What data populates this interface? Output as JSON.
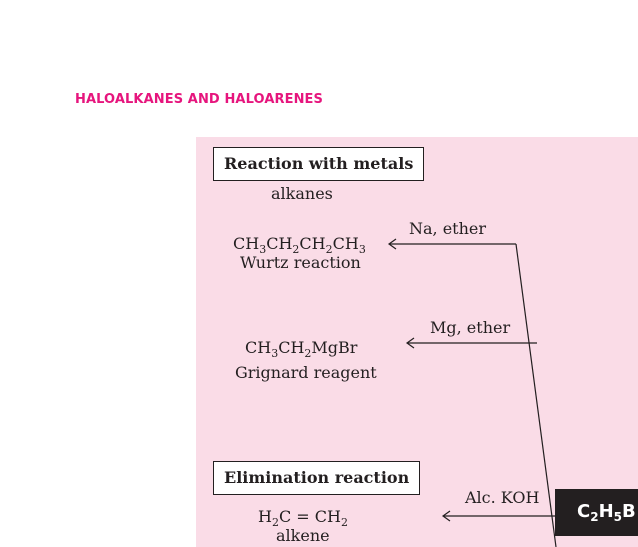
{
  "header": {
    "chapter_title": "HALOALKANES AND HALOARENES"
  },
  "sections": {
    "metals": {
      "title": "Reaction with metals",
      "category": "alkanes"
    },
    "elimination": {
      "title": "Elimination reaction"
    }
  },
  "reactions": {
    "wurtz": {
      "formula": [
        "CH",
        "3",
        "CH",
        "2",
        "CH",
        "2",
        "CH",
        "3"
      ],
      "name": "Wurtz reaction",
      "reagent": "Na, ether"
    },
    "grignard": {
      "formula": [
        "CH",
        "3",
        "CH",
        "2",
        "MgBr"
      ],
      "name": "Grignard reagent",
      "reagent": "Mg, ether"
    },
    "elimination": {
      "formula": [
        "H",
        "2",
        "C = CH",
        "2"
      ],
      "name": "alkene",
      "reagent": "Alc. KOH"
    }
  },
  "compound": {
    "parts": [
      "C",
      "2",
      "H",
      "5",
      "B"
    ]
  }
}
